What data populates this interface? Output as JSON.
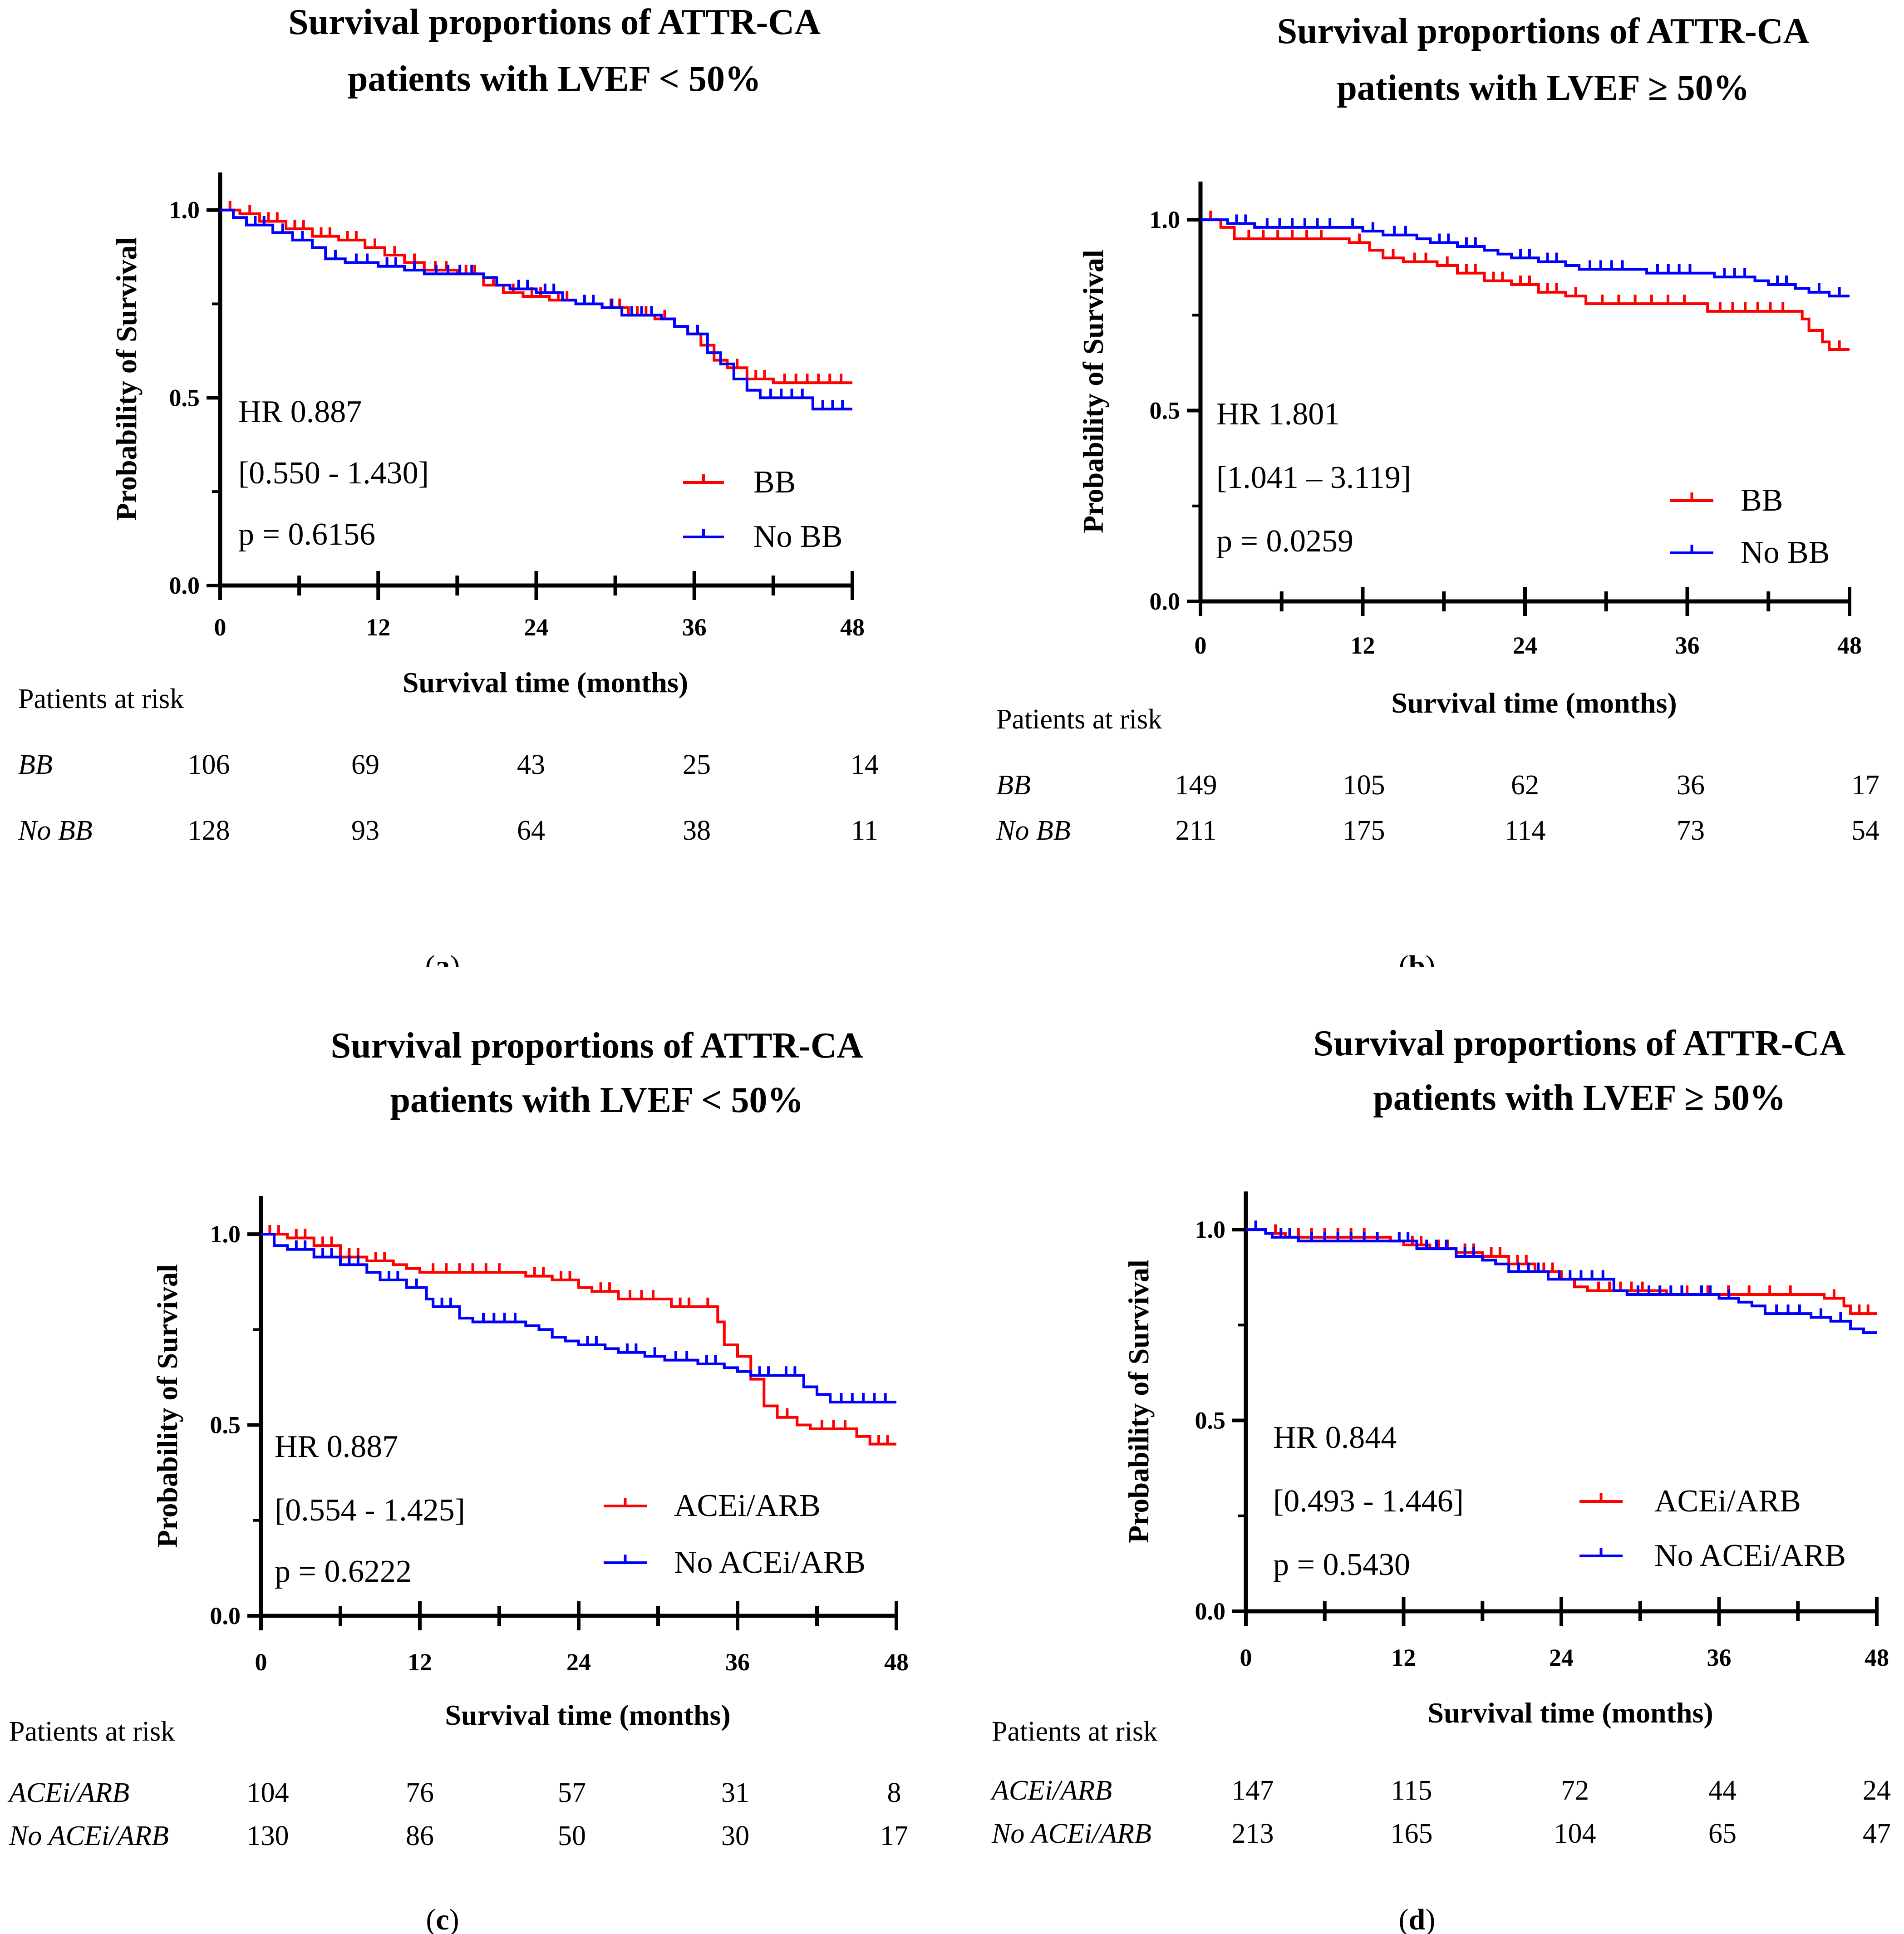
{
  "colors": {
    "treated": "#ff0000",
    "untreated": "#0000ff",
    "axis": "#000000"
  },
  "chart_data": [
    {
      "type": "line",
      "panel_label": "a",
      "title_line1": "Survival proportions of ATTR-CA",
      "title_line2": "patients with LVEF < 50%",
      "xlabel": "Survival time (months)",
      "ylabel": "Probability of Survival",
      "xlim": [
        0,
        48
      ],
      "ylim": [
        0,
        1.1
      ],
      "xticks": [
        "0",
        "12",
        "24",
        "36",
        "48"
      ],
      "yticks": [
        "0.0",
        "0.5",
        "1.0"
      ],
      "annotations": {
        "hr": "HR 0.887",
        "ci": "[0.550 - 1.430]",
        "p": "p = 0.6156"
      },
      "legend": [
        "BB",
        "No BB"
      ],
      "risk_title": "Patients at risk",
      "risk_rows": [
        {
          "label": "BB",
          "values": [
            "106",
            "69",
            "43",
            "25",
            "14"
          ]
        },
        {
          "label": "No BB",
          "values": [
            "128",
            "93",
            "64",
            "38",
            "11"
          ]
        }
      ],
      "series": [
        {
          "name": "BB",
          "points": [
            [
              0,
              1.0
            ],
            [
              1.5,
              0.99
            ],
            [
              3,
              0.97
            ],
            [
              5,
              0.95
            ],
            [
              7,
              0.93
            ],
            [
              9,
              0.92
            ],
            [
              11,
              0.9
            ],
            [
              12.5,
              0.88
            ],
            [
              14,
              0.86
            ],
            [
              15.5,
              0.84
            ],
            [
              18,
              0.83
            ],
            [
              20,
              0.8
            ],
            [
              21.5,
              0.78
            ],
            [
              23,
              0.77
            ],
            [
              25,
              0.76
            ],
            [
              27,
              0.75
            ],
            [
              29,
              0.74
            ],
            [
              31,
              0.72
            ],
            [
              33,
              0.71
            ],
            [
              34.5,
              0.69
            ],
            [
              35.5,
              0.67
            ],
            [
              36.5,
              0.64
            ],
            [
              37.5,
              0.6
            ],
            [
              38.5,
              0.58
            ],
            [
              40,
              0.55
            ],
            [
              42,
              0.54
            ],
            [
              48,
              0.54
            ]
          ]
        },
        {
          "name": "No BB",
          "points": [
            [
              0,
              1.0
            ],
            [
              1,
              0.98
            ],
            [
              2,
              0.96
            ],
            [
              4,
              0.94
            ],
            [
              5.5,
              0.92
            ],
            [
              7,
              0.9
            ],
            [
              8,
              0.87
            ],
            [
              9.5,
              0.86
            ],
            [
              12,
              0.85
            ],
            [
              14,
              0.84
            ],
            [
              15.5,
              0.83
            ],
            [
              20,
              0.82
            ],
            [
              21,
              0.8
            ],
            [
              22,
              0.79
            ],
            [
              24,
              0.78
            ],
            [
              26,
              0.76
            ],
            [
              27,
              0.75
            ],
            [
              29,
              0.74
            ],
            [
              30.5,
              0.72
            ],
            [
              33.5,
              0.71
            ],
            [
              34.5,
              0.69
            ],
            [
              35.5,
              0.67
            ],
            [
              37,
              0.62
            ],
            [
              38,
              0.59
            ],
            [
              39,
              0.55
            ],
            [
              40,
              0.52
            ],
            [
              41,
              0.5
            ],
            [
              45,
              0.47
            ],
            [
              48,
              0.47
            ]
          ]
        }
      ]
    },
    {
      "type": "line",
      "panel_label": "b",
      "title_line1": "Survival proportions of ATTR-CA",
      "title_line2": "patients with LVEF ≥ 50%",
      "xlabel": "Survival time (months)",
      "ylabel": "Probability of Survival",
      "xlim": [
        0,
        48
      ],
      "ylim": [
        0,
        1.1
      ],
      "xticks": [
        "0",
        "12",
        "24",
        "36",
        "48"
      ],
      "yticks": [
        "0.0",
        "0.5",
        "1.0"
      ],
      "annotations": {
        "hr": "HR 1.801",
        "ci": "[1.041 – 3.119]",
        "p": "p = 0.0259"
      },
      "legend": [
        "BB",
        "No BB"
      ],
      "risk_title": "Patients at risk",
      "risk_rows": [
        {
          "label": "BB",
          "values": [
            "149",
            "105",
            "62",
            "36",
            "17"
          ]
        },
        {
          "label": "No BB",
          "values": [
            "211",
            "175",
            "114",
            "73",
            "54"
          ]
        }
      ],
      "series": [
        {
          "name": "BB",
          "points": [
            [
              0,
              1.0
            ],
            [
              1.5,
              0.98
            ],
            [
              2.5,
              0.95
            ],
            [
              10,
              0.95
            ],
            [
              11,
              0.94
            ],
            [
              12.5,
              0.92
            ],
            [
              13.5,
              0.9
            ],
            [
              15,
              0.89
            ],
            [
              17.5,
              0.88
            ],
            [
              19,
              0.86
            ],
            [
              21,
              0.84
            ],
            [
              23,
              0.83
            ],
            [
              25,
              0.81
            ],
            [
              27,
              0.8
            ],
            [
              28.5,
              0.78
            ],
            [
              37,
              0.78
            ],
            [
              37.5,
              0.76
            ],
            [
              44,
              0.76
            ],
            [
              44.5,
              0.74
            ],
            [
              45,
              0.71
            ],
            [
              46,
              0.68
            ],
            [
              46.5,
              0.66
            ],
            [
              48,
              0.66
            ]
          ]
        },
        {
          "name": "No BB",
          "points": [
            [
              0,
              1.0
            ],
            [
              1,
              1.0
            ],
            [
              2,
              0.99
            ],
            [
              4,
              0.98
            ],
            [
              10.5,
              0.98
            ],
            [
              12,
              0.97
            ],
            [
              13.5,
              0.96
            ],
            [
              16,
              0.95
            ],
            [
              17,
              0.94
            ],
            [
              19,
              0.93
            ],
            [
              21,
              0.92
            ],
            [
              22,
              0.91
            ],
            [
              23,
              0.9
            ],
            [
              25,
              0.89
            ],
            [
              27,
              0.88
            ],
            [
              28,
              0.87
            ],
            [
              32,
              0.87
            ],
            [
              33,
              0.86
            ],
            [
              37,
              0.86
            ],
            [
              38,
              0.85
            ],
            [
              41,
              0.84
            ],
            [
              42,
              0.83
            ],
            [
              44,
              0.82
            ],
            [
              45,
              0.81
            ],
            [
              46.5,
              0.8
            ],
            [
              48,
              0.8
            ]
          ]
        }
      ]
    },
    {
      "type": "line",
      "panel_label": "c",
      "title_line1": "Survival proportions of ATTR-CA",
      "title_line2": "patients with LVEF < 50%",
      "xlabel": "Survival time (months)",
      "ylabel": "Probability of Survival",
      "xlim": [
        0,
        48
      ],
      "ylim": [
        0,
        1.1
      ],
      "xticks": [
        "0",
        "12",
        "24",
        "36",
        "48"
      ],
      "yticks": [
        "0.0",
        "0.5",
        "1.0"
      ],
      "annotations": {
        "hr": "HR 0.887",
        "ci": "[0.554 - 1.425]",
        "p": "p = 0.6222"
      },
      "legend": [
        "ACEi/ARB",
        "No ACEi/ARB"
      ],
      "risk_title": "Patients at risk",
      "risk_rows": [
        {
          "label": "ACEi/ARB",
          "values": [
            "104",
            "76",
            "57",
            "31",
            "8"
          ]
        },
        {
          "label": "No ACEi/ARB",
          "values": [
            "130",
            "86",
            "50",
            "30",
            "17"
          ]
        }
      ],
      "series": [
        {
          "name": "ACEi/ARB",
          "points": [
            [
              0,
              1.0
            ],
            [
              2,
              0.99
            ],
            [
              4,
              0.97
            ],
            [
              6,
              0.94
            ],
            [
              8,
              0.93
            ],
            [
              10,
              0.92
            ],
            [
              11,
              0.91
            ],
            [
              12,
              0.9
            ],
            [
              19,
              0.9
            ],
            [
              20,
              0.89
            ],
            [
              22,
              0.88
            ],
            [
              24,
              0.86
            ],
            [
              25,
              0.85
            ],
            [
              27,
              0.83
            ],
            [
              30.5,
              0.83
            ],
            [
              31,
              0.81
            ],
            [
              33,
              0.81
            ],
            [
              34.5,
              0.77
            ],
            [
              35,
              0.71
            ],
            [
              36,
              0.68
            ],
            [
              37,
              0.62
            ],
            [
              38,
              0.55
            ],
            [
              39,
              0.52
            ],
            [
              40.5,
              0.5
            ],
            [
              41.5,
              0.49
            ],
            [
              45,
              0.47
            ],
            [
              46,
              0.45
            ],
            [
              48,
              0.45
            ]
          ]
        },
        {
          "name": "No ACEi/ARB",
          "points": [
            [
              0,
              1.0
            ],
            [
              1,
              0.97
            ],
            [
              2,
              0.96
            ],
            [
              4,
              0.94
            ],
            [
              6,
              0.92
            ],
            [
              8,
              0.9
            ],
            [
              9,
              0.88
            ],
            [
              11,
              0.86
            ],
            [
              12.5,
              0.83
            ],
            [
              13,
              0.81
            ],
            [
              15,
              0.78
            ],
            [
              16,
              0.77
            ],
            [
              20,
              0.76
            ],
            [
              21,
              0.75
            ],
            [
              22,
              0.73
            ],
            [
              23,
              0.72
            ],
            [
              24,
              0.71
            ],
            [
              26,
              0.7
            ],
            [
              27,
              0.69
            ],
            [
              29,
              0.68
            ],
            [
              30.5,
              0.67
            ],
            [
              33,
              0.66
            ],
            [
              35,
              0.65
            ],
            [
              36,
              0.64
            ],
            [
              37,
              0.63
            ],
            [
              39,
              0.63
            ],
            [
              41,
              0.6
            ],
            [
              42,
              0.58
            ],
            [
              43,
              0.56
            ],
            [
              48,
              0.56
            ]
          ]
        }
      ]
    },
    {
      "type": "line",
      "panel_label": "d",
      "title_line1": "Survival proportions of ATTR-CA",
      "title_line2": "patients with LVEF ≥ 50%",
      "xlabel": "Survival time (months)",
      "ylabel": "Probability of Survival",
      "xlim": [
        0,
        48
      ],
      "ylim": [
        0,
        1.1
      ],
      "xticks": [
        "0",
        "12",
        "24",
        "36",
        "48"
      ],
      "yticks": [
        "0.0",
        "0.5",
        "1.0"
      ],
      "annotations": {
        "hr": "HR 0.844",
        "ci": "[0.493 - 1.446]",
        "p": "p = 0.5430"
      },
      "legend": [
        "ACEi/ARB",
        "No ACEi/ARB"
      ],
      "risk_title": "Patients at risk",
      "risk_rows": [
        {
          "label": "ACEi/ARB",
          "values": [
            "147",
            "115",
            "72",
            "44",
            "24"
          ]
        },
        {
          "label": "No ACEi/ARB",
          "values": [
            "213",
            "165",
            "104",
            "65",
            "47"
          ]
        }
      ],
      "series": [
        {
          "name": "ACEi/ARB",
          "points": [
            [
              0,
              1.0
            ],
            [
              1.5,
              0.99
            ],
            [
              3,
              0.98
            ],
            [
              10,
              0.98
            ],
            [
              11,
              0.97
            ],
            [
              12,
              0.96
            ],
            [
              14,
              0.95
            ],
            [
              16,
              0.94
            ],
            [
              18,
              0.93
            ],
            [
              20,
              0.91
            ],
            [
              22,
              0.89
            ],
            [
              24,
              0.87
            ],
            [
              25,
              0.85
            ],
            [
              26,
              0.84
            ],
            [
              31,
              0.84
            ],
            [
              32,
              0.83
            ],
            [
              43,
              0.83
            ],
            [
              44,
              0.82
            ],
            [
              45.5,
              0.8
            ],
            [
              46,
              0.78
            ],
            [
              48,
              0.78
            ]
          ]
        },
        {
          "name": "No ACEi/ARB",
          "points": [
            [
              0,
              1.0
            ],
            [
              1.5,
              0.99
            ],
            [
              2,
              0.98
            ],
            [
              4,
              0.97
            ],
            [
              11,
              0.97
            ],
            [
              13,
              0.95
            ],
            [
              16,
              0.93
            ],
            [
              18,
              0.92
            ],
            [
              19,
              0.91
            ],
            [
              20,
              0.89
            ],
            [
              23,
              0.87
            ],
            [
              28,
              0.84
            ],
            [
              29,
              0.83
            ],
            [
              34,
              0.83
            ],
            [
              36,
              0.82
            ],
            [
              37.5,
              0.81
            ],
            [
              38.5,
              0.8
            ],
            [
              39.5,
              0.78
            ],
            [
              43,
              0.77
            ],
            [
              44.5,
              0.76
            ],
            [
              46,
              0.74
            ],
            [
              47,
              0.73
            ],
            [
              48,
              0.73
            ]
          ]
        }
      ]
    }
  ]
}
